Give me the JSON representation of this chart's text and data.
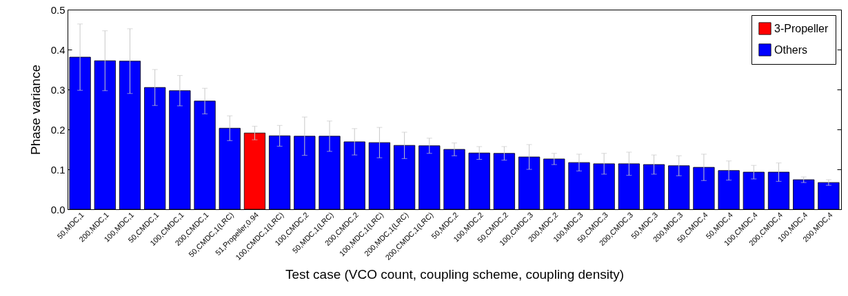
{
  "chart_data": {
    "type": "bar",
    "categories": [
      "50,MDC,1",
      "200,MDC,1",
      "100,MDC,1",
      "50,CMDC,1",
      "100,CMDC,1",
      "200,CMDC,1",
      "50,CMDC,1(LRC)",
      "51,Propeller,0.94",
      "100,CMDC,1(LRC)",
      "100,CMDC,2",
      "50,MDC,1(LRC)",
      "200,CMDC,2",
      "100,MDC,1(LRC)",
      "200,MDC,1(LRC)",
      "200,CMDC,1(LRC)",
      "50,MDC,2",
      "100,MDC,2",
      "50,CMDC,2",
      "100,CMDC,3",
      "200,MDC,2",
      "100,MDC,3",
      "50,CMDC,3",
      "200,CMDC,3",
      "50,MDC,3",
      "200,MDC,3",
      "50,CMDC,4",
      "50,MDC,4",
      "100,CMDC,4",
      "200,CMDC,4",
      "100,MDC,4",
      "200,MDC,4"
    ],
    "series": [
      {
        "name": "3-Propeller",
        "color": "#ff0000",
        "values": [
          null,
          null,
          null,
          null,
          null,
          null,
          null,
          0.191,
          null,
          null,
          null,
          null,
          null,
          null,
          null,
          null,
          null,
          null,
          null,
          null,
          null,
          null,
          null,
          null,
          null,
          null,
          null,
          null,
          null,
          null,
          null
        ],
        "errors": [
          null,
          null,
          null,
          null,
          null,
          null,
          null,
          0.017,
          null,
          null,
          null,
          null,
          null,
          null,
          null,
          null,
          null,
          null,
          null,
          null,
          null,
          null,
          null,
          null,
          null,
          null,
          null,
          null,
          null,
          null,
          null
        ]
      },
      {
        "name": "Others",
        "color": "#0000ff",
        "values": [
          0.381,
          0.372,
          0.371,
          0.305,
          0.297,
          0.271,
          0.203,
          null,
          0.184,
          0.183,
          0.183,
          0.169,
          0.167,
          0.16,
          0.159,
          0.15,
          0.141,
          0.14,
          0.131,
          0.126,
          0.117,
          0.114,
          0.114,
          0.112,
          0.109,
          0.105,
          0.097,
          0.093,
          0.093,
          0.074,
          0.067
        ],
        "errors": [
          0.083,
          0.075,
          0.081,
          0.045,
          0.038,
          0.032,
          0.031,
          null,
          0.026,
          0.048,
          0.038,
          0.033,
          0.038,
          0.033,
          0.019,
          0.016,
          0.016,
          0.017,
          0.031,
          0.014,
          0.021,
          0.026,
          0.029,
          0.024,
          0.025,
          0.033,
          0.024,
          0.017,
          0.023,
          0.007,
          0.007
        ]
      }
    ],
    "xlabel": "Test case (VCO count, coupling scheme, coupling density)",
    "ylabel": "Phase variance",
    "ylim": [
      0,
      0.5
    ],
    "yticks": [
      {
        "value": 0,
        "label": "0.0"
      },
      0.1,
      0.2,
      0.3,
      0.4,
      0.5
    ],
    "legend": "top right"
  }
}
